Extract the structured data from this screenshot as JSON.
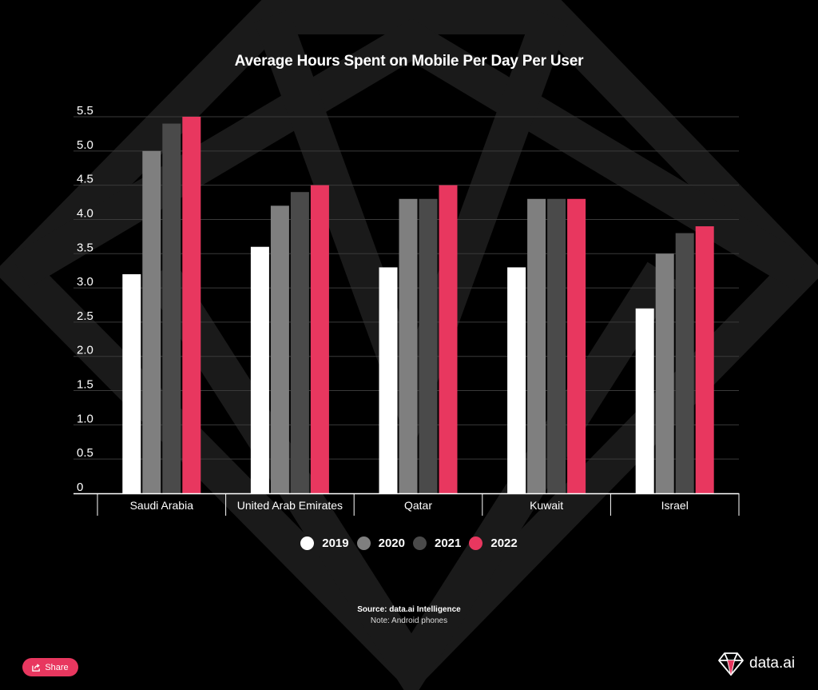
{
  "title": "Average Hours Spent on Mobile Per Day Per User",
  "source": "Source: data.ai Intelligence",
  "note": "Note: Android phones",
  "share_label": "Share",
  "brand_name": "data.ai",
  "colors": {
    "background": "#000000",
    "gridline": "#3a3a3a",
    "series": [
      "#ffffff",
      "#7f7f7f",
      "#4a4a4a",
      "#e8375f"
    ],
    "share_button": "#e8375f"
  },
  "icons": {
    "share": "share-icon",
    "brand": "diamond-logo-icon"
  },
  "chart_data": {
    "type": "bar",
    "title": "Average Hours Spent on Mobile Per Day Per User",
    "xlabel": "",
    "ylabel": "",
    "ylim": [
      0,
      5.5
    ],
    "yticks": [
      "0",
      "0.5",
      "1.0",
      "1.5",
      "2.0",
      "2.5",
      "3.0",
      "3.5",
      "4.0",
      "4.5",
      "5.0",
      "5.5"
    ],
    "grid": true,
    "legend_position": "bottom",
    "categories": [
      "Saudi Arabia",
      "United Arab Emirates",
      "Qatar",
      "Kuwait",
      "Israel"
    ],
    "series": [
      {
        "name": "2019",
        "color": "#ffffff",
        "values": [
          3.2,
          3.6,
          3.3,
          3.3,
          2.7
        ]
      },
      {
        "name": "2020",
        "color": "#7f7f7f",
        "values": [
          5.0,
          4.2,
          4.3,
          4.3,
          3.5
        ]
      },
      {
        "name": "2021",
        "color": "#4a4a4a",
        "values": [
          5.4,
          4.4,
          4.3,
          4.3,
          3.8
        ]
      },
      {
        "name": "2022",
        "color": "#e8375f",
        "values": [
          5.5,
          4.5,
          4.5,
          4.3,
          3.9
        ]
      }
    ]
  }
}
